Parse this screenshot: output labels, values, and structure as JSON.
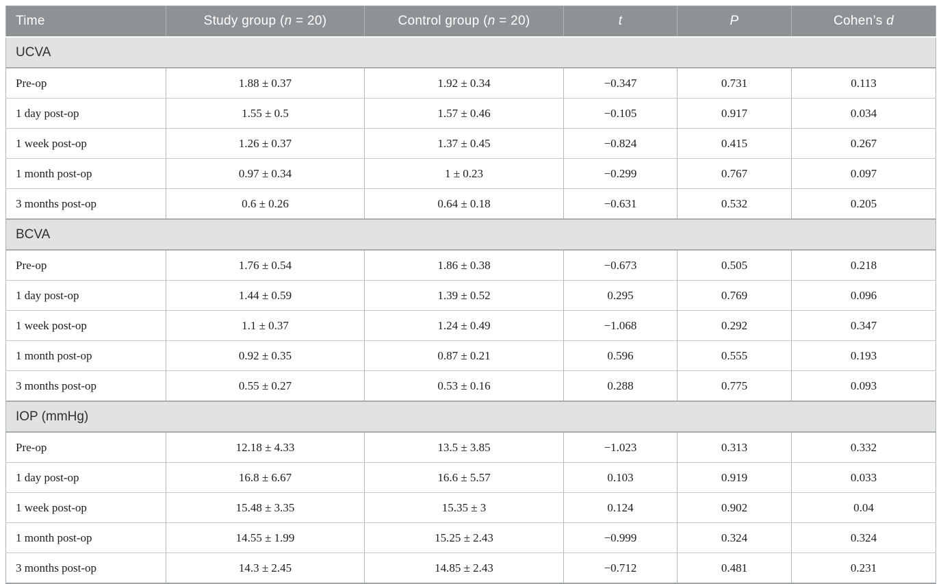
{
  "colors": {
    "header_bg": "#8e9294",
    "header_text": "#ffffff",
    "section_bg": "#e1e3e3",
    "body_bg": "#ffffff",
    "grid_line": "#b4b7b8",
    "row_line": "#c6c8c9",
    "strong_line": "#9ea2a4",
    "body_text": "#1c1c1c",
    "section_text": "#2f2f2f"
  },
  "table": {
    "columns": [
      "Time",
      "Study group (*n* = 20)",
      "Control group (*n* = 20)",
      "*t*",
      "*P*",
      "Cohen’s *d*"
    ],
    "sections": [
      {
        "label": "UCVA",
        "rows": [
          [
            "Pre-op",
            "1.88 ± 0.37",
            "1.92 ± 0.34",
            "−0.347",
            "0.731",
            "0.113"
          ],
          [
            "1 day post-op",
            "1.55 ± 0.5",
            "1.57 ± 0.46",
            "−0.105",
            "0.917",
            "0.034"
          ],
          [
            "1 week post-op",
            "1.26 ± 0.37",
            "1.37 ± 0.45",
            "−0.824",
            "0.415",
            "0.267"
          ],
          [
            "1 month post-op",
            "0.97 ± 0.34",
            "1 ± 0.23",
            "−0.299",
            "0.767",
            "0.097"
          ],
          [
            "3 months post-op",
            "0.6 ± 0.26",
            "0.64 ± 0.18",
            "−0.631",
            "0.532",
            "0.205"
          ]
        ]
      },
      {
        "label": "BCVA",
        "rows": [
          [
            "Pre-op",
            "1.76 ± 0.54",
            "1.86 ± 0.38",
            "−0.673",
            "0.505",
            "0.218"
          ],
          [
            "1 day post-op",
            "1.44 ± 0.59",
            "1.39 ± 0.52",
            "0.295",
            "0.769",
            "0.096"
          ],
          [
            "1 week post-op",
            "1.1 ± 0.37",
            "1.24 ± 0.49",
            "−1.068",
            "0.292",
            "0.347"
          ],
          [
            "1 month post-op",
            "0.92 ± 0.35",
            "0.87 ± 0.21",
            "0.596",
            "0.555",
            "0.193"
          ],
          [
            "3 months post-op",
            "0.55 ± 0.27",
            "0.53 ± 0.16",
            "0.288",
            "0.775",
            "0.093"
          ]
        ]
      },
      {
        "label": "IOP (mmHg)",
        "rows": [
          [
            "Pre-op",
            "12.18 ± 4.33",
            "13.5 ± 3.85",
            "−1.023",
            "0.313",
            "0.332"
          ],
          [
            "1 day post-op",
            "16.8 ± 6.67",
            "16.6 ± 5.57",
            "0.103",
            "0.919",
            "0.033"
          ],
          [
            "1 week post-op",
            "15.48 ± 3.35",
            "15.35 ± 3",
            "0.124",
            "0.902",
            "0.04"
          ],
          [
            "1 month post-op",
            "14.55 ± 1.99",
            "15.25 ± 2.43",
            "−0.999",
            "0.324",
            "0.324"
          ],
          [
            "3 months post-op",
            "14.3 ± 2.45",
            "14.85 ± 2.43",
            "−0.712",
            "0.481",
            "0.231"
          ]
        ]
      }
    ]
  }
}
